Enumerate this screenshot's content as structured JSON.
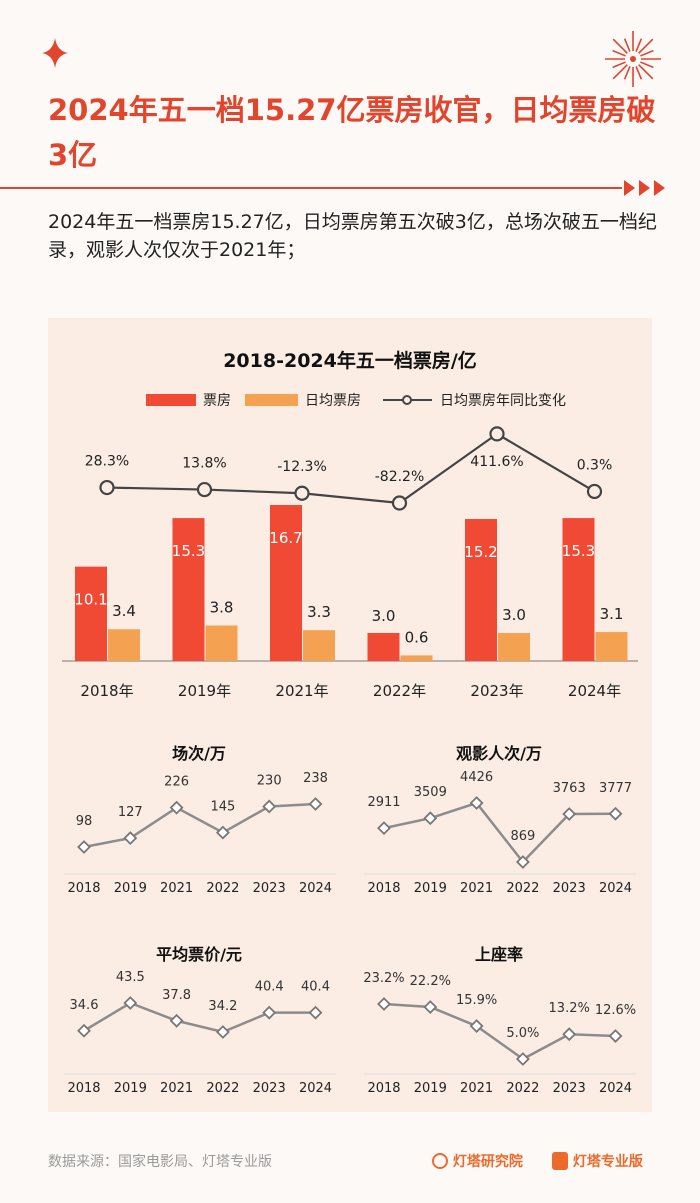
{
  "header": {
    "title": "2024年五一档15.27亿票房收官，日均票房破3亿",
    "subtitle": "2024年五一档票房15.27亿，日均票房第五次破3亿，总场次破五一档纪录，观影人次仅次于2021年；"
  },
  "footer": {
    "source": "数据来源：国家电影局、灯塔专业版",
    "brand1": "灯塔研究院",
    "brand2": "灯塔专业版"
  },
  "colors": {
    "accent": "#e2452d",
    "bar_red": "#f04a35",
    "bar_orange": "#f4a252",
    "line": "#555555",
    "small_line": "#8c8c8c"
  },
  "chart_data": [
    {
      "type": "bar",
      "title": "2018-2024年五一档票房/亿",
      "categories": [
        "2018年",
        "2019年",
        "2021年",
        "2022年",
        "2023年",
        "2024年"
      ],
      "series": [
        {
          "name": "票房",
          "type": "bar",
          "values": [
            10.1,
            15.3,
            16.7,
            3.0,
            15.2,
            15.3
          ]
        },
        {
          "name": "日均票房",
          "type": "bar",
          "values": [
            3.4,
            3.8,
            3.3,
            0.6,
            3.0,
            3.1
          ]
        },
        {
          "name": "日均票房年同比变化",
          "type": "line",
          "values": [
            28.3,
            13.8,
            -12.3,
            -82.2,
            411.6,
            0.3
          ],
          "labels": [
            "28.3%",
            "13.8%",
            "-12.3%",
            "-82.2%",
            "411.6%",
            "0.3%"
          ]
        }
      ],
      "legend": "top"
    },
    {
      "type": "line",
      "title": "场次/万",
      "categories": [
        "2018",
        "2019",
        "2021",
        "2022",
        "2023",
        "2024"
      ],
      "values": [
        98,
        127,
        226,
        145,
        230,
        238
      ],
      "labels": [
        "98",
        "127",
        "226",
        "145",
        "230",
        "238"
      ]
    },
    {
      "type": "line",
      "title": "观影人次/万",
      "categories": [
        "2018",
        "2019",
        "2021",
        "2022",
        "2023",
        "2024"
      ],
      "values": [
        2911,
        3509,
        4426,
        869,
        3763,
        3777
      ],
      "labels": [
        "2911",
        "3509",
        "4426",
        "869",
        "3763",
        "3777"
      ]
    },
    {
      "type": "line",
      "title": "平均票价/元",
      "categories": [
        "2018",
        "2019",
        "2021",
        "2022",
        "2023",
        "2024"
      ],
      "values": [
        34.6,
        43.5,
        37.8,
        34.2,
        40.4,
        40.4
      ],
      "labels": [
        "34.6",
        "43.5",
        "37.8",
        "34.2",
        "40.4",
        "40.4"
      ]
    },
    {
      "type": "line",
      "title": "上座率",
      "categories": [
        "2018",
        "2019",
        "2021",
        "2022",
        "2023",
        "2024"
      ],
      "values": [
        23.2,
        22.2,
        15.9,
        5.0,
        13.2,
        12.6
      ],
      "labels": [
        "23.2%",
        "22.2%",
        "15.9%",
        "5.0%",
        "13.2%",
        "12.6%"
      ]
    }
  ]
}
